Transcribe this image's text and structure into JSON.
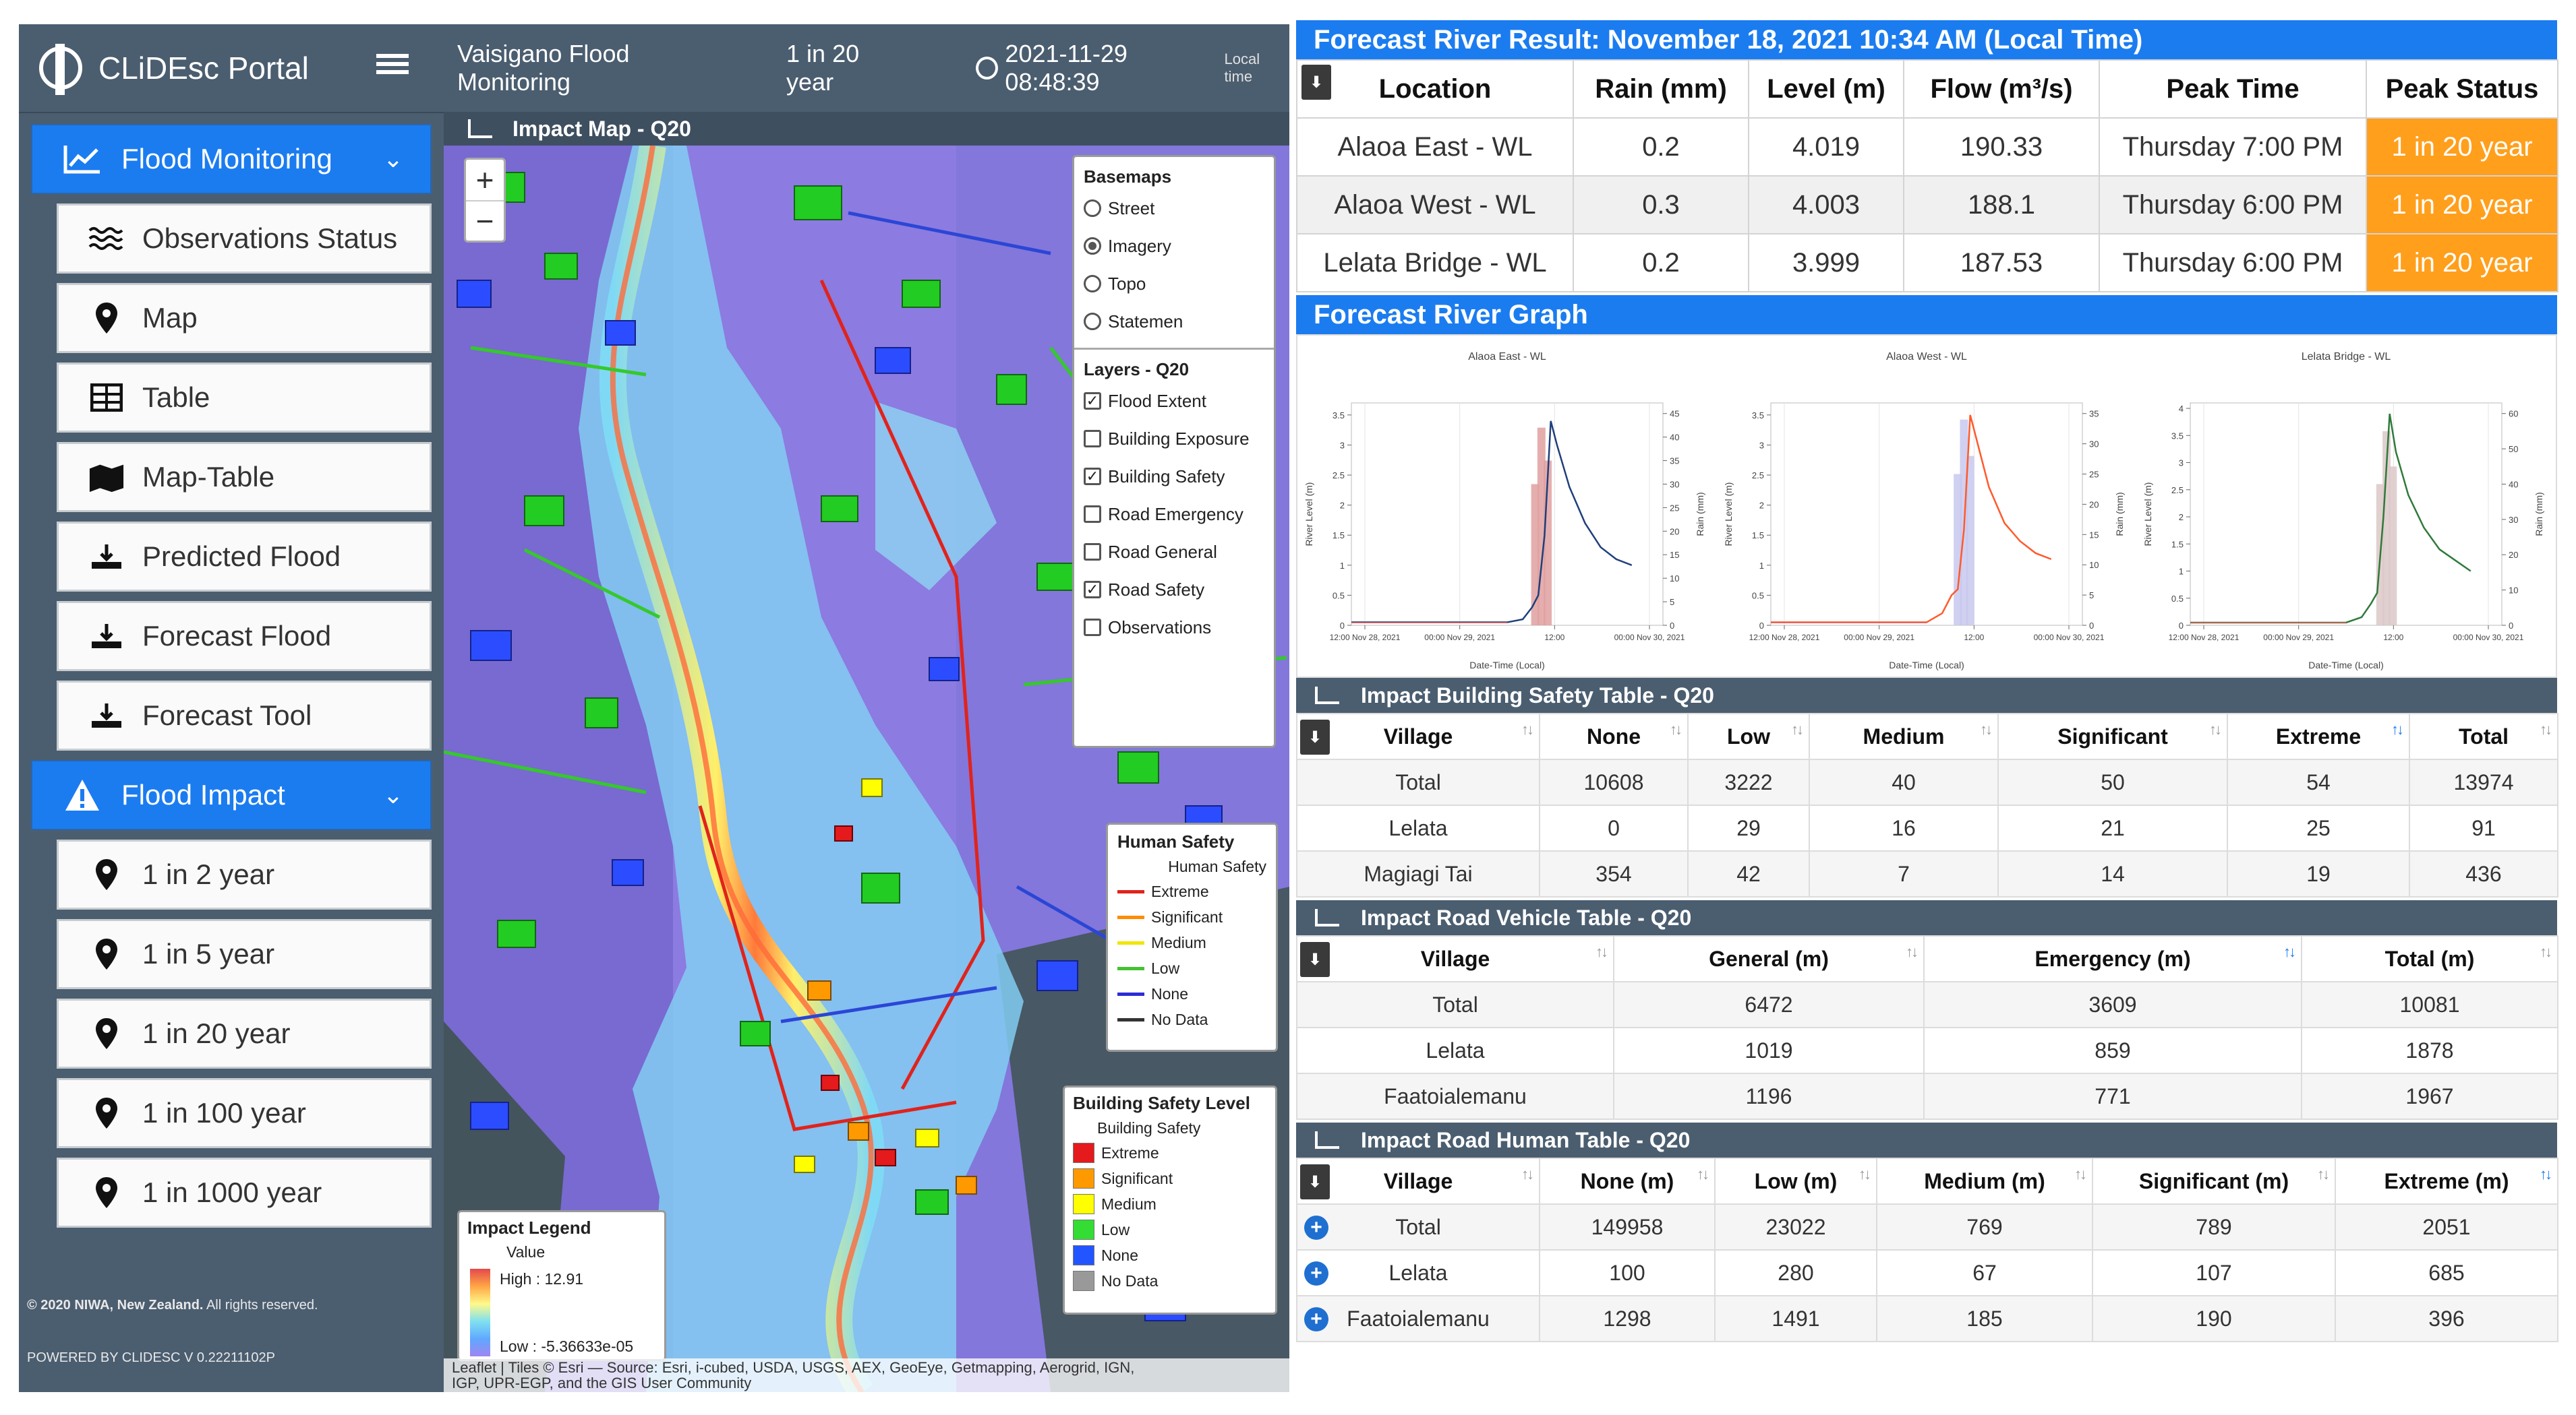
{
  "app": {
    "title": "CLiDEsc Portal",
    "area": "Vaisigano Flood Monitoring",
    "return_period": "1 in 20 year",
    "datetime": "2021-11-29 08:48:39",
    "time_suffix": "Local time",
    "copyright_bold": "© 2020 NIWA, New Zealand.",
    "copyright_rest": " All rights reserved.",
    "powered": "POWERED BY CLIDESC  V 0.22211102P"
  },
  "sidebar": {
    "flood_monitoring": {
      "label": "Flood Monitoring",
      "items": [
        {
          "label": "Observations Status",
          "icon": "waves-icon"
        },
        {
          "label": "Map",
          "icon": "map-pin-icon"
        },
        {
          "label": "Table",
          "icon": "table-icon"
        },
        {
          "label": "Map-Table",
          "icon": "map-table-icon"
        },
        {
          "label": "Predicted Flood",
          "icon": "flood-icon"
        },
        {
          "label": "Forecast Flood",
          "icon": "flood-icon"
        },
        {
          "label": "Forecast Tool",
          "icon": "flood-icon"
        }
      ]
    },
    "flood_impact": {
      "label": "Flood Impact",
      "items": [
        {
          "label": "1 in 2 year",
          "icon": "map-pin-icon"
        },
        {
          "label": "1 in 5 year",
          "icon": "map-pin-icon"
        },
        {
          "label": "1 in 20 year",
          "icon": "map-pin-icon"
        },
        {
          "label": "1 in 100 year",
          "icon": "map-pin-icon"
        },
        {
          "label": "1 in 1000 year",
          "icon": "map-pin-icon"
        }
      ]
    }
  },
  "map": {
    "title": "Impact Map - Q20",
    "zoom_in": "+",
    "zoom_out": "−",
    "basemaps": {
      "title": "Basemaps",
      "options": [
        "Street",
        "Imagery",
        "Topo",
        "Statemen"
      ],
      "selected": "Imagery"
    },
    "layers": {
      "title": "Layers - Q20",
      "items": [
        {
          "label": "Flood Extent",
          "checked": true
        },
        {
          "label": "Building Exposure",
          "checked": false
        },
        {
          "label": "Building Safety",
          "checked": true
        },
        {
          "label": "Road Emergency",
          "checked": false
        },
        {
          "label": "Road General",
          "checked": false
        },
        {
          "label": "Road Safety",
          "checked": true
        },
        {
          "label": "Observations",
          "checked": false
        }
      ]
    },
    "human_safety": {
      "title": "Human Safety",
      "subtitle": "Human Safety",
      "items": [
        {
          "label": "Extreme",
          "color": "#e0231c"
        },
        {
          "label": "Significant",
          "color": "#ff8c00"
        },
        {
          "label": "Medium",
          "color": "#f2e600"
        },
        {
          "label": "Low",
          "color": "#44c232"
        },
        {
          "label": "None",
          "color": "#2c2cd6"
        },
        {
          "label": "No Data",
          "color": "#333333"
        }
      ]
    },
    "building_safety": {
      "title": "Building Safety Level",
      "subtitle": "Building Safety",
      "items": [
        {
          "label": "Extreme",
          "color": "#e41a1c"
        },
        {
          "label": "Significant",
          "color": "#ff9900"
        },
        {
          "label": "Medium",
          "color": "#ffff00"
        },
        {
          "label": "Low",
          "color": "#33dd33"
        },
        {
          "label": "None",
          "color": "#2255ff"
        },
        {
          "label": "No Data",
          "color": "#999999"
        }
      ]
    },
    "impact_legend": {
      "title": "Impact Legend",
      "value_label": "Value",
      "high": "High : 12.91",
      "low": "Low : -5.36633e-05"
    },
    "attribution_line1": "Leaflet | Tiles © Esri — Source: Esri, i-cubed, USDA, USGS, AEX, GeoEye, Getmapping, Aerogrid, IGN,",
    "attribution_line2": "IGP, UPR-EGP, and the GIS User Community"
  },
  "forecast": {
    "title": "Forecast River Result: November 18, 2021 10:34 AM (Local Time)",
    "columns": [
      "Location",
      "Rain (mm)",
      "Level (m)",
      "Flow (m³/s)",
      "Peak Time",
      "Peak Status"
    ],
    "rows": [
      [
        "Alaoa East - WL",
        "0.2",
        "4.019",
        "190.33",
        "Thursday 7:00 PM",
        "1 in 20 year"
      ],
      [
        "Alaoa West - WL",
        "0.3",
        "4.003",
        "188.1",
        "Thursday 6:00 PM",
        "1 in 20 year"
      ],
      [
        "Lelata Bridge - WL",
        "0.2",
        "3.999",
        "187.53",
        "Thursday 6:00 PM",
        "1 in 20 year"
      ]
    ],
    "graph_title": "Forecast River Graph"
  },
  "chart_data": [
    {
      "type": "line",
      "title": "Alaoa East - WL",
      "xlabel": "Date-Time (Local)",
      "ylabel": "River Level (m)",
      "y2label": "Rain (mm)",
      "x_ticks": [
        "12:00 Nov 28, 2021",
        "00:00 Nov 29, 2021",
        "12:00",
        "00:00 Nov 30, 2021"
      ],
      "y_ticks": [
        "0",
        "0.5",
        "1",
        "1.5",
        "2",
        "2.5",
        "3",
        "3.5"
      ],
      "y2_ticks": [
        "0",
        "5",
        "10",
        "15",
        "20",
        "25",
        "30",
        "35",
        "40",
        "45"
      ],
      "ylim": [
        0,
        3.7
      ],
      "series": [
        {
          "name": "River Level",
          "color": "#1f3f7a",
          "x": [
            0,
            0.1,
            0.2,
            0.3,
            0.4,
            0.5,
            0.55,
            0.58,
            0.6,
            0.62,
            0.64,
            0.66,
            0.7,
            0.75,
            0.8,
            0.85,
            0.9
          ],
          "y": [
            0.05,
            0.05,
            0.05,
            0.05,
            0.05,
            0.05,
            0.1,
            0.3,
            0.5,
            1.5,
            3.4,
            3.0,
            2.3,
            1.7,
            1.3,
            1.1,
            1.0
          ]
        },
        {
          "name": "Rain",
          "color": "#e0a0a0",
          "x": [
            0.59,
            0.61,
            0.63
          ],
          "y": [
            30,
            42,
            35
          ]
        }
      ]
    },
    {
      "type": "line",
      "title": "Alaoa West - WL",
      "xlabel": "Date-Time (Local)",
      "ylabel": "River Level (m)",
      "y2label": "Rain (mm)",
      "x_ticks": [
        "12:00 Nov 28, 2021",
        "00:00 Nov 29, 2021",
        "12:00",
        "00:00 Nov 30, 2021"
      ],
      "y_ticks": [
        "0",
        "0.5",
        "1",
        "1.5",
        "2",
        "2.5",
        "3",
        "3.5"
      ],
      "y2_ticks": [
        "0",
        "5",
        "10",
        "15",
        "20",
        "25",
        "30",
        "35"
      ],
      "ylim": [
        0,
        3.7
      ],
      "series": [
        {
          "name": "River Level",
          "color": "#ff5a2a",
          "x": [
            0,
            0.2,
            0.4,
            0.5,
            0.55,
            0.58,
            0.6,
            0.62,
            0.64,
            0.66,
            0.7,
            0.75,
            0.8,
            0.85,
            0.9
          ],
          "y": [
            0.05,
            0.05,
            0.05,
            0.05,
            0.2,
            0.5,
            0.6,
            1.6,
            3.5,
            3.1,
            2.3,
            1.7,
            1.4,
            1.2,
            1.1
          ]
        },
        {
          "name": "Rain",
          "color": "#c8c8ee",
          "x": [
            0.6,
            0.62,
            0.64
          ],
          "y": [
            25,
            34,
            28
          ]
        }
      ]
    },
    {
      "type": "line",
      "title": "Lelata Bridge - WL",
      "xlabel": "Date-Time (Local)",
      "ylabel": "River Level (m)",
      "y2label": "Rain (mm)",
      "x_ticks": [
        "12:00 Nov 28, 2021",
        "00:00 Nov 29, 2021",
        "12:00",
        "00:00 Nov 30, 2021"
      ],
      "y_ticks": [
        "0",
        "0.5",
        "1",
        "1.5",
        "2",
        "2.5",
        "3",
        "3.5",
        "4"
      ],
      "y2_ticks": [
        "0",
        "10",
        "20",
        "30",
        "40",
        "50",
        "60"
      ],
      "ylim": [
        0,
        4.1
      ],
      "series": [
        {
          "name": "River Level",
          "color": "#2f7a3a",
          "x": [
            0,
            0.2,
            0.4,
            0.5,
            0.55,
            0.58,
            0.6,
            0.62,
            0.64,
            0.66,
            0.7,
            0.75,
            0.8,
            0.85,
            0.9
          ],
          "y": [
            0.05,
            0.05,
            0.05,
            0.05,
            0.15,
            0.4,
            0.6,
            2.0,
            3.9,
            3.2,
            2.4,
            1.8,
            1.4,
            1.2,
            1.0
          ]
        },
        {
          "name": "Rain",
          "color": "#dcc8c8",
          "x": [
            0.61,
            0.63,
            0.65
          ],
          "y": [
            40,
            55,
            45
          ]
        }
      ]
    }
  ],
  "building_table": {
    "title": "Impact Building Safety Table - Q20",
    "columns": [
      "Village",
      "None",
      "Low",
      "Medium",
      "Significant",
      "Extreme",
      "Total"
    ],
    "rows": [
      [
        "Total",
        "10608",
        "3222",
        "40",
        "50",
        "54",
        "13974"
      ],
      [
        "Lelata",
        "0",
        "29",
        "16",
        "21",
        "25",
        "91"
      ],
      [
        "Magiagi Tai",
        "354",
        "42",
        "7",
        "14",
        "19",
        "436"
      ]
    ]
  },
  "road_vehicle_table": {
    "title": "Impact Road Vehicle Table - Q20",
    "columns": [
      "Village",
      "General (m)",
      "Emergency (m)",
      "Total (m)"
    ],
    "rows": [
      [
        "Total",
        "6472",
        "3609",
        "10081"
      ],
      [
        "Lelata",
        "1019",
        "859",
        "1878"
      ],
      [
        "Faatoialemanu",
        "1196",
        "771",
        "1967"
      ]
    ]
  },
  "road_human_table": {
    "title": "Impact Road Human Table - Q20",
    "columns": [
      "Village",
      "None (m)",
      "Low (m)",
      "Medium (m)",
      "Significant (m)",
      "Extreme (m)"
    ],
    "rows": [
      [
        "Total",
        "149958",
        "23022",
        "769",
        "789",
        "2051"
      ],
      [
        "Lelata",
        "100",
        "280",
        "67",
        "107",
        "685"
      ],
      [
        "Faatoialemanu",
        "1298",
        "1491",
        "185",
        "190",
        "396"
      ]
    ]
  }
}
